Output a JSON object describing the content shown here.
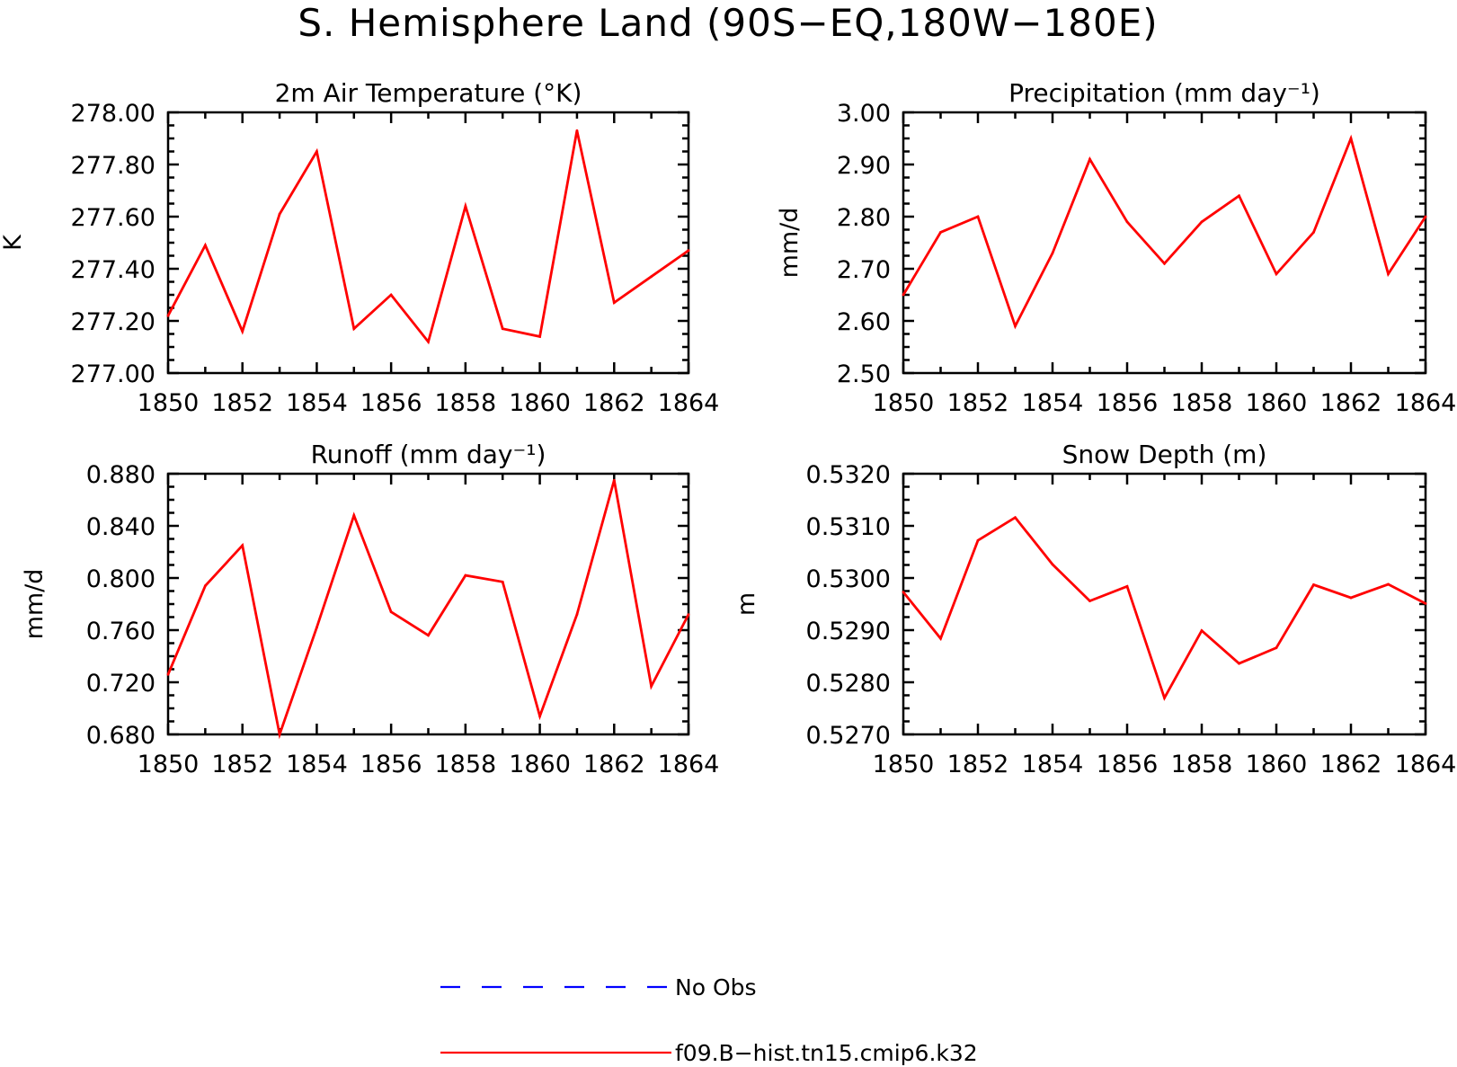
{
  "title": "S. Hemisphere Land (90S−EQ,180W−180E)",
  "colors": {
    "model": "#ff0000",
    "obs": "#0000ff",
    "frame": "#000000"
  },
  "legend": [
    {
      "label": "No Obs",
      "style": "dashed",
      "color": "#0000ff"
    },
    {
      "label": "f09.B−hist.tn15.cmip6.k32",
      "style": "solid",
      "color": "#ff0000"
    }
  ],
  "chart_data": [
    {
      "type": "line",
      "title": "2m Air Temperature (°K)",
      "ylabel": "K",
      "xlim": [
        1850,
        1864
      ],
      "ylim": [
        277.0,
        278.0
      ],
      "xticks": [
        "1850",
        "1852",
        "1854",
        "1856",
        "1858",
        "1860",
        "1862",
        "1864"
      ],
      "yticks": [
        "277.00",
        "277.20",
        "277.40",
        "277.60",
        "277.80",
        "278.00"
      ],
      "x": [
        1850,
        1851,
        1852,
        1853,
        1854,
        1855,
        1856,
        1857,
        1858,
        1859,
        1860,
        1861,
        1862,
        1863,
        1864
      ],
      "series": [
        {
          "values": [
            277.22,
            277.49,
            277.16,
            277.61,
            277.85,
            277.17,
            277.3,
            277.12,
            277.64,
            277.17,
            277.14,
            277.93,
            277.27,
            277.37,
            277.47
          ]
        }
      ]
    },
    {
      "type": "line",
      "title": "Precipitation (mm day⁻¹)",
      "ylabel": "mm/d",
      "xlim": [
        1850,
        1864
      ],
      "ylim": [
        2.5,
        3.0
      ],
      "xticks": [
        "1850",
        "1852",
        "1854",
        "1856",
        "1858",
        "1860",
        "1862",
        "1864"
      ],
      "yticks": [
        "2.50",
        "2.60",
        "2.70",
        "2.80",
        "2.90",
        "3.00"
      ],
      "x": [
        1850,
        1851,
        1852,
        1853,
        1854,
        1855,
        1856,
        1857,
        1858,
        1859,
        1860,
        1861,
        1862,
        1863,
        1864
      ],
      "series": [
        {
          "values": [
            2.65,
            2.77,
            2.8,
            2.59,
            2.73,
            2.91,
            2.79,
            2.71,
            2.79,
            2.84,
            2.69,
            2.77,
            2.95,
            2.69,
            2.8
          ]
        }
      ]
    },
    {
      "type": "line",
      "title": "Runoff (mm day⁻¹)",
      "ylabel": "mm/d",
      "xlim": [
        1850,
        1864
      ],
      "ylim": [
        0.68,
        0.88
      ],
      "xticks": [
        "1850",
        "1852",
        "1854",
        "1856",
        "1858",
        "1860",
        "1862",
        "1864"
      ],
      "yticks": [
        "0.680",
        "0.720",
        "0.760",
        "0.800",
        "0.840",
        "0.880"
      ],
      "x": [
        1850,
        1851,
        1852,
        1853,
        1854,
        1855,
        1856,
        1857,
        1858,
        1859,
        1860,
        1861,
        1862,
        1863,
        1864
      ],
      "series": [
        {
          "values": [
            0.726,
            0.794,
            0.825,
            0.68,
            0.762,
            0.848,
            0.774,
            0.756,
            0.802,
            0.797,
            0.694,
            0.772,
            0.875,
            0.717,
            0.772
          ]
        }
      ]
    },
    {
      "type": "line",
      "title": "Snow Depth (m)",
      "ylabel": "m",
      "xlim": [
        1850,
        1864
      ],
      "ylim": [
        0.527,
        0.532
      ],
      "xticks": [
        "1850",
        "1852",
        "1854",
        "1856",
        "1858",
        "1860",
        "1862",
        "1864"
      ],
      "yticks": [
        "0.5270",
        "0.5280",
        "0.5290",
        "0.5300",
        "0.5310",
        "0.5320"
      ],
      "x": [
        1850,
        1851,
        1852,
        1853,
        1854,
        1855,
        1856,
        1857,
        1858,
        1859,
        1860,
        1861,
        1862,
        1863,
        1864
      ],
      "series": [
        {
          "values": [
            0.52973,
            0.52884,
            0.53072,
            0.53116,
            0.53026,
            0.52956,
            0.52984,
            0.5277,
            0.52899,
            0.52836,
            0.52866,
            0.52987,
            0.52962,
            0.52988,
            0.52951
          ]
        }
      ]
    }
  ]
}
